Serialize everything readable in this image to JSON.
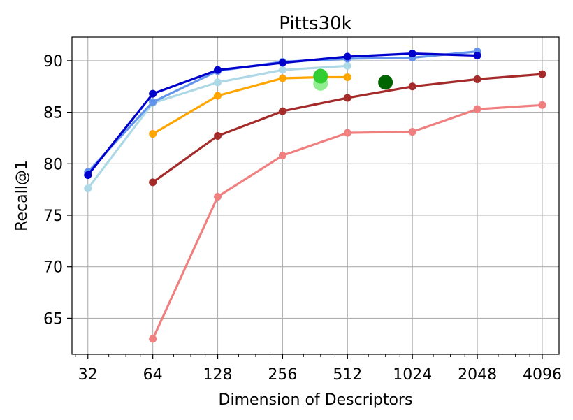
{
  "chart_data": {
    "type": "line",
    "title": "Pitts30k",
    "xlabel": "Dimension of Descriptors",
    "ylabel": "Recall@1",
    "xscale": "log2",
    "xlim": [
      27,
      4900
    ],
    "ylim": [
      61.5,
      92.3
    ],
    "grid": true,
    "x_ticks": [
      32,
      64,
      128,
      256,
      512,
      1024,
      2048,
      4096
    ],
    "x_tick_labels": [
      "32",
      "64",
      "128",
      "256",
      "512",
      "1024",
      "2048",
      "4096"
    ],
    "y_ticks": [
      65,
      70,
      75,
      80,
      85,
      90
    ],
    "y_tick_labels": [
      "65",
      "70",
      "75",
      "80",
      "85",
      "90"
    ],
    "series": [
      {
        "name": "series-light-coral",
        "color": "#f08080",
        "x": [
          64,
          128,
          256,
          512,
          1024,
          2048,
          4096
        ],
        "y": [
          63.0,
          76.8,
          80.8,
          83.0,
          83.1,
          85.3,
          85.7
        ]
      },
      {
        "name": "series-brown",
        "color": "#a52a2a",
        "x": [
          64,
          128,
          256,
          512,
          1024,
          2048,
          4096
        ],
        "y": [
          78.2,
          82.7,
          85.1,
          86.4,
          87.5,
          88.2,
          88.7
        ]
      },
      {
        "name": "series-orange",
        "color": "#ffa500",
        "x": [
          64,
          128,
          256,
          384,
          512
        ],
        "y": [
          82.9,
          86.6,
          88.3,
          88.4,
          88.4
        ]
      },
      {
        "name": "series-light-blue",
        "color": "#add8e6",
        "x": [
          32,
          64,
          128,
          256,
          512
        ],
        "y": [
          77.6,
          85.9,
          87.9,
          89.1,
          89.5
        ]
      },
      {
        "name": "series-cornflower-blue",
        "color": "#6495ed",
        "x": [
          32,
          64,
          128,
          256,
          512,
          1024,
          2048
        ],
        "y": [
          79.2,
          86.0,
          89.0,
          89.9,
          90.2,
          90.3,
          90.9
        ]
      },
      {
        "name": "series-medium-blue",
        "color": "#0000cd",
        "x": [
          32,
          64,
          128,
          256,
          512,
          1024,
          2048
        ],
        "y": [
          78.9,
          86.8,
          89.1,
          89.8,
          90.4,
          90.7,
          90.5
        ]
      }
    ],
    "points": [
      {
        "name": "point-light-green",
        "color": "#90ee90",
        "x": 384,
        "y": 87.8
      },
      {
        "name": "point-lime-green",
        "color": "#32cd32",
        "x": 384,
        "y": 88.5
      },
      {
        "name": "point-dark-green",
        "color": "#006400",
        "x": 768,
        "y": 87.9
      }
    ]
  }
}
